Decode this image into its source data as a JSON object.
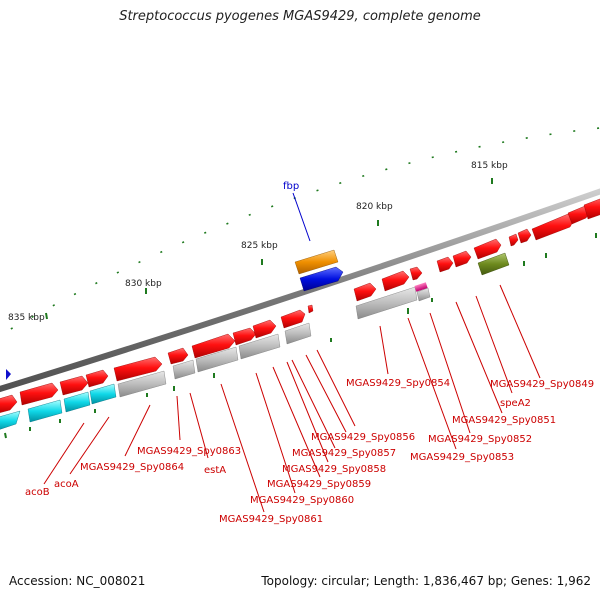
{
  "title": "Streptococcus pyogenes MGAS9429, complete genome",
  "footer": {
    "accession": "Accession: NC_008021",
    "summary": "Topology: circular; Length: 1,836,467 bp; Genes: 1,962"
  },
  "kbp_ticks": [
    "835 kbp",
    "830 kbp",
    "825 kbp",
    "820 kbp",
    "815 kbp"
  ],
  "feature_labels": {
    "fbp": "fbp",
    "Spy0849": "MGAS9429_Spy0849",
    "speA2": "speA2",
    "Spy0851": "MGAS9429_Spy0851",
    "Spy0852": "MGAS9429_Spy0852",
    "Spy0853": "MGAS9429_Spy0853",
    "Spy0854": "MGAS9429_Spy0854",
    "Spy0856": "MGAS9429_Spy0856",
    "Spy0857": "MGAS9429_Spy0857",
    "Spy0858": "MGAS9429_Spy0858",
    "Spy0859": "MGAS9429_Spy0859",
    "Spy0860": "MGAS9429_Spy0860",
    "Spy0861": "MGAS9429_Spy0861",
    "Spy0863": "MGAS9429_Spy0863",
    "estA": "estA",
    "Spy0864": "MGAS9429_Spy0864",
    "acoA": "acoA",
    "acoB": "acoB"
  },
  "colors": {
    "cds_forward": "#e00000",
    "cds_reverse_gray": "#b5b5b5",
    "acetoin_cyan": "#00d0e0",
    "fbp_orange": "#f08c00",
    "fbp_blue": "#0010e0",
    "speA2_magenta": "#e0108c",
    "olive": "#6e8a1e",
    "label_red": "#cc0000",
    "label_blue": "#0000cc",
    "tick_green": "#1f7a1f",
    "backbone": "#808080"
  }
}
